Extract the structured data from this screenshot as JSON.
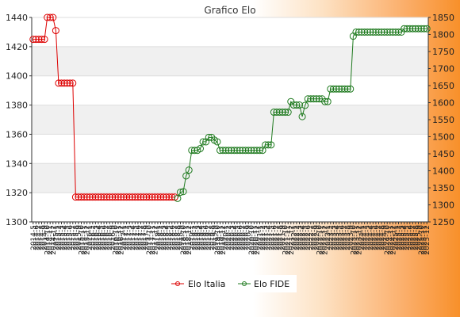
{
  "chart_data": {
    "type": "line",
    "title": "Grafico Elo",
    "legend_position": "bottom",
    "grid": true,
    "left_axis": {
      "ylim": [
        1300,
        1440
      ],
      "ticks": [
        1300,
        1320,
        1340,
        1360,
        1380,
        1400,
        1420,
        1440
      ]
    },
    "right_axis": {
      "ylim": [
        1250,
        1850
      ],
      "ticks": [
        1250,
        1300,
        1350,
        1400,
        1450,
        1500,
        1550,
        1600,
        1650,
        1700,
        1750,
        1800,
        1850
      ]
    },
    "x": [
      "2014-5",
      "2014-6",
      "2014-7",
      "2014-8",
      "2014-9",
      "2014-10",
      "2014-11",
      "2014-12",
      "2015-1",
      "2015-2",
      "2015-3",
      "2015-4",
      "2015-5",
      "2015-6",
      "2015-7",
      "2015-8",
      "2015-9",
      "2015-10",
      "2015-11",
      "2015-12",
      "2016-1",
      "2016-2",
      "2016-3",
      "2016-4",
      "2016-5",
      "2016-6",
      "2016-7",
      "2016-8",
      "2016-9",
      "2016-10",
      "2016-11",
      "2016-12",
      "2017-1",
      "2017-2",
      "2017-3",
      "2017-4",
      "2017-5",
      "2017-6",
      "2017-7",
      "2017-8",
      "2017-9",
      "2017-10",
      "2017-11",
      "2017-12",
      "2018-1",
      "2018-2",
      "2018-3",
      "2018-4",
      "2018-5",
      "2018-6",
      "2018-7",
      "2018-8",
      "2018-9",
      "2018-10",
      "2018-11",
      "2018-12",
      "2019-1",
      "2019-2",
      "2019-3",
      "2019-4",
      "2019-5",
      "2019-6",
      "2019-7",
      "2019-8",
      "2019-9",
      "2019-10",
      "2019-11",
      "2019-12",
      "2020-1",
      "2020-2",
      "2020-3",
      "2020-4",
      "2020-5",
      "2020-6",
      "2020-7",
      "2020-8",
      "2020-9",
      "2020-10",
      "2020-11",
      "2020-12",
      "2021-1",
      "2021-2",
      "2021-3",
      "2021-4",
      "2021-5",
      "2021-6",
      "2021-7",
      "2021-8",
      "2021-9",
      "2021-10",
      "2021-11",
      "2021-12",
      "2022-1",
      "2022-2",
      "2022-3",
      "2022-4",
      "2022-5",
      "2022-6",
      "2022-7",
      "2022-8",
      "2022-9",
      "2022-10",
      "2022-11",
      "2022-12",
      "2023-1",
      "2023-2",
      "2023-3",
      "2023-4",
      "2023-5",
      "2023-6",
      "2023-7",
      "2023-8",
      "2023-9",
      "2023-10",
      "2023-11",
      "2023-12",
      "2024-1",
      "2024-2",
      "2024-3",
      "2024-4",
      "2024-5",
      "2024-6",
      "2024-7",
      "2024-8",
      "2024-9",
      "2024-10",
      "2024-11",
      "2024-12",
      "2025-1",
      "2025-2",
      "2025-3",
      "2025-4",
      "2025-5",
      "2025-6",
      "2025-7",
      "2025-8",
      "2025-9",
      "2025-10",
      "2025-11",
      "2025-12"
    ],
    "series": [
      {
        "name": "Elo Italia",
        "axis": "left",
        "color": "#dd0000",
        "values": [
          1425,
          1425,
          1425,
          1425,
          1425,
          1440,
          1440,
          1440,
          1431,
          1395,
          1395,
          1395,
          1395,
          1395,
          1395,
          1317,
          1317,
          1317,
          1317,
          1317,
          1317,
          1317,
          1317,
          1317,
          1317,
          1317,
          1317,
          1317,
          1317,
          1317,
          1317,
          1317,
          1317,
          1317,
          1317,
          1317,
          1317,
          1317,
          1317,
          1317,
          1317,
          1317,
          1317,
          1317,
          1317,
          1317,
          1317,
          1317,
          1317,
          1317,
          1317,
          null,
          null,
          null,
          null,
          null,
          null,
          null,
          null,
          null,
          null,
          null,
          null,
          null,
          null,
          null,
          null,
          null,
          null,
          null,
          null,
          null,
          null,
          null,
          null,
          null,
          null,
          null,
          null,
          null,
          null,
          null,
          null,
          null,
          null,
          null,
          null,
          null,
          null,
          null,
          null,
          null,
          null,
          null,
          null,
          null,
          null,
          null,
          null,
          null,
          null,
          null,
          null,
          null,
          null,
          null,
          null,
          null,
          null,
          null,
          null,
          null,
          null,
          null,
          null,
          null,
          null,
          null,
          null,
          null,
          null,
          null,
          null,
          null,
          null,
          null,
          null,
          null,
          null,
          null,
          null,
          null,
          null,
          null,
          null,
          null,
          null,
          null,
          null,
          null
        ]
      },
      {
        "name": "Elo FIDE",
        "axis": "right",
        "color": "#1f7a1f",
        "values": [
          null,
          null,
          null,
          null,
          null,
          null,
          null,
          null,
          null,
          null,
          null,
          null,
          null,
          null,
          null,
          null,
          null,
          null,
          null,
          null,
          null,
          null,
          null,
          null,
          null,
          null,
          null,
          null,
          null,
          null,
          null,
          null,
          null,
          null,
          null,
          null,
          null,
          null,
          null,
          null,
          null,
          null,
          null,
          null,
          null,
          null,
          null,
          null,
          null,
          null,
          null,
          1319,
          1337,
          1339,
          1385,
          1402,
          1460,
          1460,
          1460,
          1465,
          1485,
          1485,
          1498,
          1498,
          1490,
          1485,
          1460,
          1460,
          1460,
          1460,
          1460,
          1460,
          1460,
          1460,
          1460,
          1460,
          1460,
          1460,
          1460,
          1460,
          1460,
          1460,
          1476,
          1476,
          1476,
          1572,
          1572,
          1572,
          1572,
          1572,
          1572,
          1603,
          1593,
          1593,
          1593,
          1559,
          1592,
          1611,
          1611,
          1611,
          1611,
          1611,
          1611,
          1603,
          1603,
          1640,
          1640,
          1640,
          1640,
          1640,
          1640,
          1640,
          1640,
          1795,
          1807,
          1807,
          1807,
          1807,
          1807,
          1807,
          1807,
          1807,
          1807,
          1807,
          1807,
          1807,
          1807,
          1807,
          1807,
          1807,
          1807,
          1817,
          1817,
          1817,
          1817,
          1817,
          1817,
          1817,
          1817,
          1817
        ]
      }
    ]
  }
}
